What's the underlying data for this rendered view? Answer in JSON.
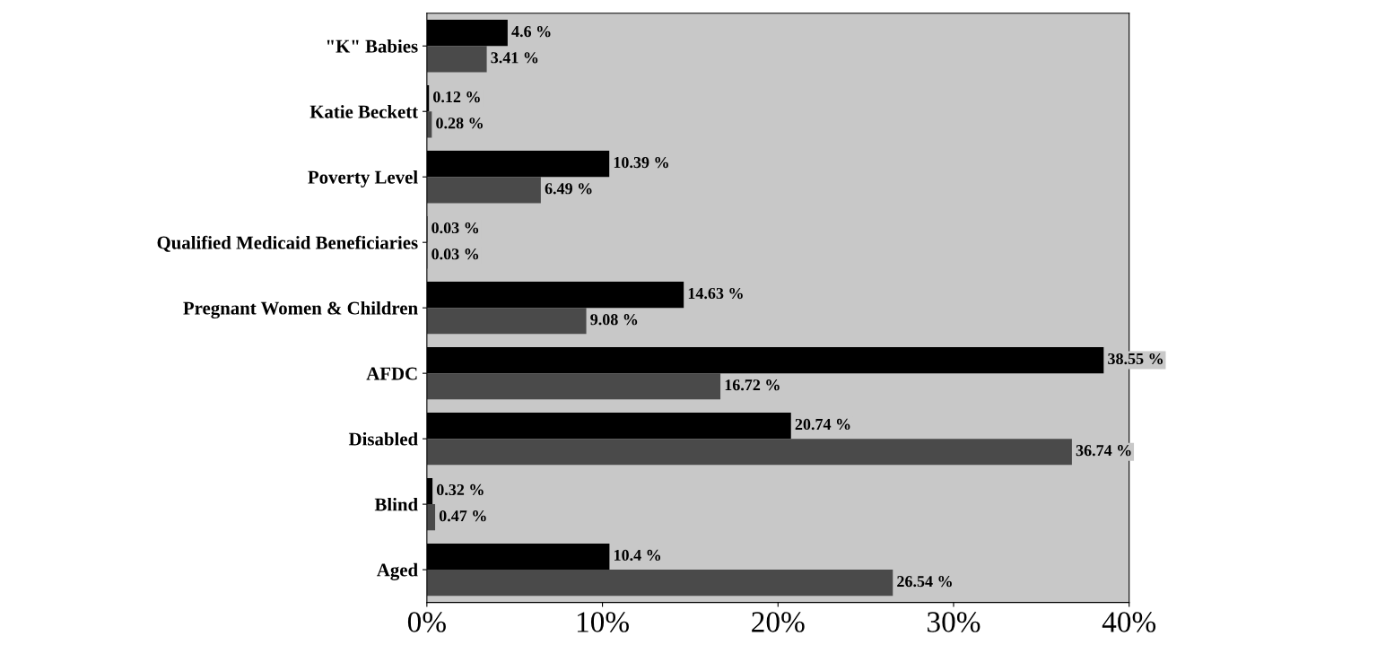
{
  "chart_data": {
    "type": "bar",
    "orientation": "horizontal",
    "categories": [
      "\"K\" Babies",
      "Katie Beckett",
      "Poverty Level",
      "Qualified Medicaid Beneficiaries",
      "Pregnant Women & Children",
      "AFDC",
      "Disabled",
      "Blind",
      "Aged"
    ],
    "series": [
      {
        "color": "#000000",
        "values": [
          4.6,
          0.12,
          10.39,
          0.03,
          14.63,
          38.55,
          20.74,
          0.32,
          10.4
        ],
        "value_labels": [
          "4.6 %",
          "0.12 %",
          "10.39 %",
          "0.03 %",
          "14.63 %",
          "38.55 %",
          "20.74 %",
          "0.32 %",
          "10.4 %"
        ]
      },
      {
        "color": "#4a4a4a",
        "values": [
          3.41,
          0.28,
          6.49,
          0.03,
          9.08,
          16.72,
          36.74,
          0.47,
          26.54
        ],
        "value_labels": [
          "3.41 %",
          "0.28 %",
          "6.49 %",
          "0.03 %",
          "9.08 %",
          "16.72 %",
          "36.74 %",
          "0.47 %",
          "26.54 %"
        ]
      }
    ],
    "xlim": [
      0,
      40
    ],
    "xticks": [
      {
        "value": 0,
        "label": "0%"
      },
      {
        "value": 10,
        "label": "10%"
      },
      {
        "value": 20,
        "label": "20%"
      },
      {
        "value": 30,
        "label": "30%"
      },
      {
        "value": 40,
        "label": "40%"
      }
    ],
    "grid": false,
    "legend": false
  }
}
